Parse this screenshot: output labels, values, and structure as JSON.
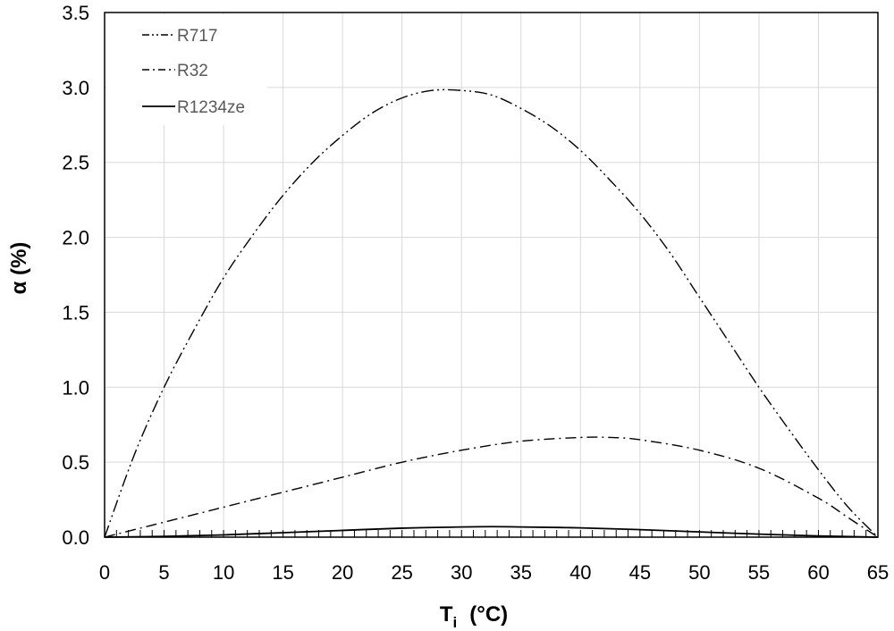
{
  "chart_data": {
    "type": "line",
    "title": "",
    "xlabel": "T",
    "xlabel_subscript": "i",
    "xlabel_unit": "(°C)",
    "ylabel": "α (%)",
    "xlim": [
      0,
      65
    ],
    "ylim": [
      0,
      3.5
    ],
    "xticks": [
      0,
      5,
      10,
      15,
      20,
      25,
      30,
      35,
      40,
      45,
      50,
      55,
      60,
      65
    ],
    "yticks": [
      "0.0",
      "0.5",
      "1.0",
      "1.5",
      "2.0",
      "2.5",
      "3.0",
      "3.5"
    ],
    "grid": true,
    "legend_position": "top-left",
    "series": [
      {
        "name": "R717",
        "dash": "dash-dot-dot",
        "color": "#000000",
        "x": [
          0,
          2.5,
          5,
          7.5,
          10,
          12.5,
          15,
          17.5,
          20,
          22.5,
          25,
          27.5,
          30,
          32.5,
          35,
          37.5,
          40,
          42.5,
          45,
          47.5,
          50,
          52.5,
          55,
          57.5,
          60,
          62.5,
          65
        ],
        "y": [
          0,
          0.55,
          1.0,
          1.38,
          1.73,
          2.02,
          2.28,
          2.5,
          2.68,
          2.83,
          2.93,
          2.98,
          2.98,
          2.95,
          2.86,
          2.74,
          2.58,
          2.38,
          2.16,
          1.9,
          1.6,
          1.3,
          1.0,
          0.72,
          0.45,
          0.2,
          0
        ]
      },
      {
        "name": "R32",
        "dash": "dash-dot",
        "color": "#000000",
        "x": [
          0,
          5,
          10,
          15,
          20,
          25,
          30,
          35,
          40,
          42.5,
          45,
          50,
          55,
          60,
          62.5,
          65
        ],
        "y": [
          0,
          0.1,
          0.2,
          0.3,
          0.4,
          0.5,
          0.58,
          0.64,
          0.665,
          0.665,
          0.65,
          0.58,
          0.46,
          0.26,
          0.13,
          0
        ]
      },
      {
        "name": "R1234ze",
        "dash": "solid",
        "color": "#000000",
        "x": [
          0,
          5,
          10,
          15,
          20,
          25,
          30,
          32.5,
          35,
          40,
          45,
          50,
          55,
          60,
          65
        ],
        "y": [
          0,
          0.005,
          0.015,
          0.03,
          0.045,
          0.06,
          0.068,
          0.07,
          0.068,
          0.062,
          0.05,
          0.035,
          0.02,
          0.008,
          0
        ]
      }
    ]
  }
}
